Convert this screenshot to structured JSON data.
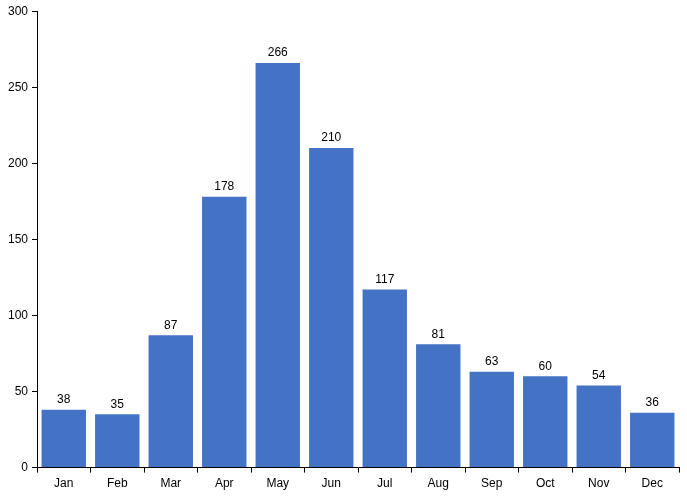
{
  "chart_data": {
    "type": "bar",
    "categories": [
      "Jan",
      "Feb",
      "Mar",
      "Apr",
      "May",
      "Jun",
      "Jul",
      "Aug",
      "Sep",
      "Oct",
      "Nov",
      "Dec"
    ],
    "values": [
      38,
      35,
      87,
      178,
      266,
      210,
      117,
      81,
      63,
      60,
      54,
      36
    ],
    "color": "#4472c4",
    "ylim": [
      0,
      300
    ],
    "yticks": [
      0,
      50,
      100,
      150,
      200,
      250,
      300
    ],
    "grid": false,
    "data_labels": true
  }
}
